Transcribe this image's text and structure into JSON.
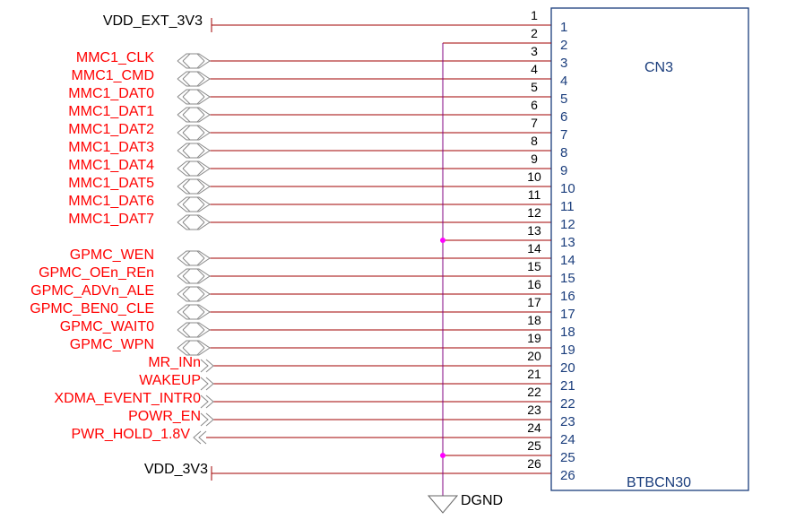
{
  "component": {
    "refdes": "CN3",
    "part": "BTBCN30",
    "pin_count": 26,
    "outline_color": "#1a3d7c"
  },
  "colors": {
    "wire": "#a00000",
    "net_label": "#ff0000",
    "power_label": "#000000",
    "ground_net": "#800080",
    "junction": "#ff00ff"
  },
  "power_nets": [
    {
      "name": "VDD_EXT_3V3",
      "pin": 1
    },
    {
      "name": "VDD_3V3",
      "pin": 26
    }
  ],
  "signal_nets": [
    {
      "name": "MMC1_CLK",
      "pin": 3,
      "port": "bidirectional"
    },
    {
      "name": "MMC1_CMD",
      "pin": 4,
      "port": "bidirectional"
    },
    {
      "name": "MMC1_DAT0",
      "pin": 5,
      "port": "bidirectional"
    },
    {
      "name": "MMC1_DAT1",
      "pin": 6,
      "port": "bidirectional"
    },
    {
      "name": "MMC1_DAT2",
      "pin": 7,
      "port": "bidirectional"
    },
    {
      "name": "MMC1_DAT3",
      "pin": 8,
      "port": "bidirectional"
    },
    {
      "name": "MMC1_DAT4",
      "pin": 9,
      "port": "bidirectional"
    },
    {
      "name": "MMC1_DAT5",
      "pin": 10,
      "port": "bidirectional"
    },
    {
      "name": "MMC1_DAT6",
      "pin": 11,
      "port": "bidirectional"
    },
    {
      "name": "MMC1_DAT7",
      "pin": 12,
      "port": "bidirectional"
    },
    {
      "name": "GPMC_WEN",
      "pin": 14,
      "port": "bidirectional"
    },
    {
      "name": "GPMC_OEn_REn",
      "pin": 15,
      "port": "bidirectional"
    },
    {
      "name": "GPMC_ADVn_ALE",
      "pin": 16,
      "port": "bidirectional"
    },
    {
      "name": "GPMC_BEN0_CLE",
      "pin": 17,
      "port": "bidirectional"
    },
    {
      "name": "GPMC_WAIT0",
      "pin": 18,
      "port": "bidirectional"
    },
    {
      "name": "GPMC_WPN",
      "pin": 19,
      "port": "bidirectional"
    },
    {
      "name": "MR_INn",
      "pin": 20,
      "port": "input"
    },
    {
      "name": "WAKEUP",
      "pin": 21,
      "port": "input"
    },
    {
      "name": "XDMA_EVENT_INTR0",
      "pin": 22,
      "port": "input"
    },
    {
      "name": "POWR_EN",
      "pin": 23,
      "port": "input"
    },
    {
      "name": "PWR_HOLD_1.8V",
      "pin": 24,
      "port": "output"
    }
  ],
  "ground": {
    "name": "DGND",
    "pins": [
      2,
      13,
      25
    ],
    "junction_pins": [
      13,
      25
    ]
  }
}
